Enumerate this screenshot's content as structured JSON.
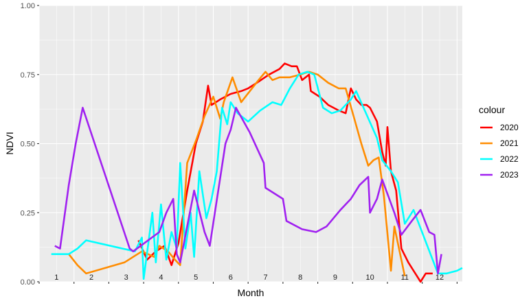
{
  "chart_data": {
    "type": "line",
    "xlabel": "Month",
    "ylabel": "NDVI",
    "ylim": [
      0,
      1
    ],
    "xlim": [
      0.5,
      12.65
    ],
    "yticks": [
      "0.00",
      "0.25",
      "0.50",
      "0.75",
      "1.00"
    ],
    "ytick_values": [
      0,
      0.25,
      0.5,
      0.75,
      1
    ],
    "month_labels": [
      "1",
      "2",
      "3",
      "4",
      "5",
      "6",
      "7",
      "8",
      "9",
      "10",
      "11",
      "12"
    ],
    "grid": true,
    "legend": {
      "title": "colour",
      "position": "right"
    },
    "series": [
      {
        "name": "2020",
        "color": "#ff0000",
        "points": [
          [
            3.35,
            0.15
          ],
          [
            3.6,
            0.08
          ],
          [
            3.85,
            0.11
          ],
          [
            4.1,
            0.13
          ],
          [
            4.3,
            0.06
          ],
          [
            4.5,
            0.14
          ],
          [
            4.75,
            0.33
          ],
          [
            5.0,
            0.5
          ],
          [
            5.2,
            0.58
          ],
          [
            5.35,
            0.71
          ],
          [
            5.45,
            0.64
          ],
          [
            5.7,
            0.66
          ],
          [
            6.0,
            0.68
          ],
          [
            6.3,
            0.69
          ],
          [
            6.5,
            0.7
          ],
          [
            6.75,
            0.72
          ],
          [
            7.1,
            0.75
          ],
          [
            7.4,
            0.77
          ],
          [
            7.55,
            0.79
          ],
          [
            7.75,
            0.78
          ],
          [
            7.9,
            0.78
          ],
          [
            8.05,
            0.73
          ],
          [
            8.25,
            0.75
          ],
          [
            8.3,
            0.69
          ],
          [
            8.55,
            0.67
          ],
          [
            8.8,
            0.64
          ],
          [
            9.1,
            0.62
          ],
          [
            9.3,
            0.61
          ],
          [
            9.45,
            0.7
          ],
          [
            9.6,
            0.66
          ],
          [
            9.75,
            0.64
          ],
          [
            9.9,
            0.64
          ],
          [
            10.0,
            0.63
          ],
          [
            10.2,
            0.58
          ],
          [
            10.35,
            0.47
          ],
          [
            10.45,
            0.42
          ],
          [
            10.5,
            0.56
          ],
          [
            10.6,
            0.4
          ],
          [
            10.75,
            0.33
          ],
          [
            10.9,
            0.12
          ],
          [
            11.1,
            0.07
          ],
          [
            11.3,
            0.03
          ],
          [
            11.45,
            0.0
          ],
          [
            11.6,
            0.03
          ],
          [
            11.8,
            0.03
          ]
        ]
      },
      {
        "name": "2021",
        "color": "#ff8c00",
        "points": [
          [
            1.35,
            0.1
          ],
          [
            1.6,
            0.06
          ],
          [
            1.85,
            0.03
          ],
          [
            2.95,
            0.07
          ],
          [
            3.2,
            0.09
          ],
          [
            3.45,
            0.11
          ],
          [
            3.8,
            0.09
          ],
          [
            3.95,
            0.13
          ],
          [
            4.2,
            0.11
          ],
          [
            4.4,
            0.08
          ],
          [
            4.55,
            0.06
          ],
          [
            4.75,
            0.43
          ],
          [
            5.0,
            0.51
          ],
          [
            5.25,
            0.6
          ],
          [
            5.5,
            0.67
          ],
          [
            5.7,
            0.59
          ],
          [
            5.8,
            0.65
          ],
          [
            6.05,
            0.74
          ],
          [
            6.3,
            0.65
          ],
          [
            6.55,
            0.69
          ],
          [
            6.8,
            0.73
          ],
          [
            7.0,
            0.76
          ],
          [
            7.2,
            0.73
          ],
          [
            7.4,
            0.74
          ],
          [
            7.7,
            0.74
          ],
          [
            8.0,
            0.75
          ],
          [
            8.25,
            0.76
          ],
          [
            8.5,
            0.75
          ],
          [
            8.8,
            0.72
          ],
          [
            9.1,
            0.7
          ],
          [
            9.3,
            0.7
          ],
          [
            9.55,
            0.59
          ],
          [
            9.75,
            0.5
          ],
          [
            9.95,
            0.42
          ],
          [
            10.1,
            0.44
          ],
          [
            10.25,
            0.45
          ],
          [
            10.4,
            0.31
          ],
          [
            10.6,
            0.04
          ],
          [
            10.7,
            0.2
          ],
          [
            10.85,
            0.11
          ],
          [
            11.0,
            0.02
          ]
        ]
      },
      {
        "name": "2022",
        "color": "#00ffff",
        "points": [
          [
            0.85,
            0.1
          ],
          [
            1.1,
            0.1
          ],
          [
            1.35,
            0.1
          ],
          [
            1.6,
            0.12
          ],
          [
            1.85,
            0.15
          ],
          [
            3.25,
            0.11
          ],
          [
            3.45,
            0.16
          ],
          [
            3.5,
            0.01
          ],
          [
            3.75,
            0.25
          ],
          [
            3.85,
            0.07
          ],
          [
            4.0,
            0.28
          ],
          [
            4.15,
            0.08
          ],
          [
            4.3,
            0.18
          ],
          [
            4.45,
            0.12
          ],
          [
            4.55,
            0.43
          ],
          [
            4.7,
            0.12
          ],
          [
            4.85,
            0.25
          ],
          [
            4.95,
            0.09
          ],
          [
            5.1,
            0.4
          ],
          [
            5.3,
            0.23
          ],
          [
            5.45,
            0.3
          ],
          [
            5.6,
            0.4
          ],
          [
            5.75,
            0.63
          ],
          [
            5.9,
            0.57
          ],
          [
            6.0,
            0.65
          ],
          [
            6.2,
            0.61
          ],
          [
            6.5,
            0.58
          ],
          [
            6.85,
            0.62
          ],
          [
            7.2,
            0.65
          ],
          [
            7.45,
            0.64
          ],
          [
            7.7,
            0.7
          ],
          [
            7.95,
            0.75
          ],
          [
            8.2,
            0.76
          ],
          [
            8.4,
            0.75
          ],
          [
            8.65,
            0.63
          ],
          [
            8.9,
            0.61
          ],
          [
            9.15,
            0.62
          ],
          [
            9.45,
            0.66
          ],
          [
            9.6,
            0.69
          ],
          [
            9.85,
            0.62
          ],
          [
            10.2,
            0.52
          ],
          [
            10.35,
            0.44
          ],
          [
            10.6,
            0.4
          ],
          [
            10.8,
            0.36
          ],
          [
            11.0,
            0.21
          ],
          [
            11.15,
            0.24
          ],
          [
            11.25,
            0.26
          ],
          [
            11.95,
            0.03
          ],
          [
            12.2,
            0.03
          ],
          [
            12.5,
            0.04
          ],
          [
            12.65,
            0.05
          ]
        ]
      },
      {
        "name": "2023",
        "color": "#a020f0",
        "points": [
          [
            0.95,
            0.13
          ],
          [
            1.1,
            0.12
          ],
          [
            1.35,
            0.35
          ],
          [
            1.55,
            0.5
          ],
          [
            1.75,
            0.63
          ],
          [
            3.1,
            0.12
          ],
          [
            3.2,
            0.11
          ],
          [
            3.95,
            0.18
          ],
          [
            4.15,
            0.25
          ],
          [
            4.35,
            0.3
          ],
          [
            4.45,
            0.1
          ],
          [
            4.55,
            0.07
          ],
          [
            4.95,
            0.33
          ],
          [
            5.25,
            0.18
          ],
          [
            5.4,
            0.13
          ],
          [
            5.85,
            0.5
          ],
          [
            6.0,
            0.55
          ],
          [
            6.15,
            0.63
          ],
          [
            6.55,
            0.54
          ],
          [
            6.95,
            0.43
          ],
          [
            7.0,
            0.34
          ],
          [
            7.5,
            0.3
          ],
          [
            7.6,
            0.22
          ],
          [
            8.05,
            0.19
          ],
          [
            8.45,
            0.18
          ],
          [
            8.75,
            0.2
          ],
          [
            9.15,
            0.26
          ],
          [
            9.45,
            0.3
          ],
          [
            9.7,
            0.35
          ],
          [
            9.95,
            0.38
          ],
          [
            10.0,
            0.25
          ],
          [
            10.2,
            0.3
          ],
          [
            10.35,
            0.37
          ],
          [
            10.7,
            0.25
          ],
          [
            10.9,
            0.17
          ],
          [
            11.2,
            0.22
          ],
          [
            11.45,
            0.26
          ],
          [
            11.7,
            0.18
          ],
          [
            11.85,
            0.17
          ],
          [
            11.95,
            0.03
          ],
          [
            12.05,
            0.1
          ]
        ]
      }
    ]
  }
}
